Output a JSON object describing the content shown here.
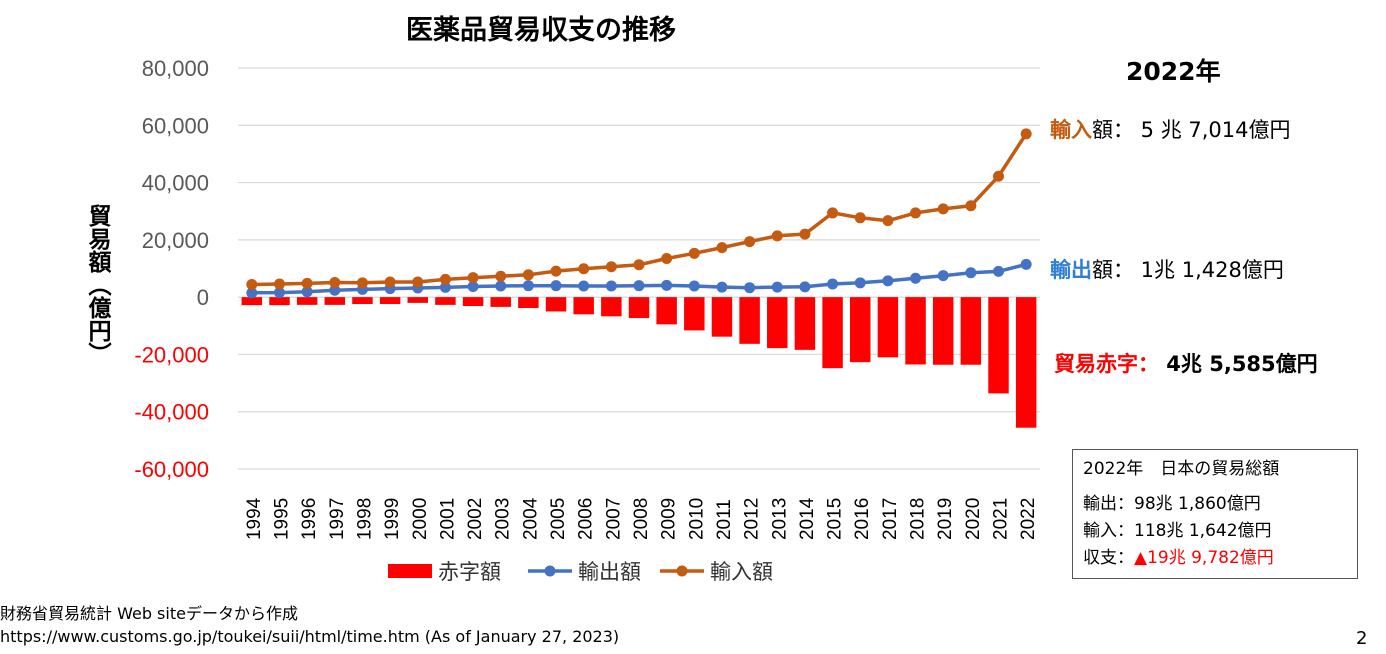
{
  "chart_data": {
    "type": "bar",
    "title": "医薬品貿易収支の推移",
    "ylabel": "貿易額（億円）",
    "ylim": [
      -60000,
      80000
    ],
    "yticks": [
      "80,000",
      "60,000",
      "40,000",
      "20,000",
      "0",
      "-20,000",
      "-40,000",
      "-60,000"
    ],
    "grid": true,
    "legend_position": "bottom",
    "categories": [
      "1994",
      "1995",
      "1996",
      "1997",
      "1998",
      "1999",
      "2000",
      "2001",
      "2002",
      "2003",
      "2004",
      "2005",
      "2006",
      "2007",
      "2008",
      "2009",
      "2010",
      "2011",
      "2012",
      "2013",
      "2014",
      "2015",
      "2016",
      "2017",
      "2018",
      "2019",
      "2020",
      "2021",
      "2022"
    ],
    "series": [
      {
        "name": "赤字額",
        "type": "bar",
        "color": "#ff0000",
        "values": [
          -2800,
          -2800,
          -2700,
          -2700,
          -2400,
          -2400,
          -2000,
          -2700,
          -3100,
          -3400,
          -3800,
          -5000,
          -6000,
          -6700,
          -7300,
          -9500,
          -11600,
          -13800,
          -16300,
          -17800,
          -18400,
          -24800,
          -22700,
          -21000,
          -23500,
          -23600,
          -23600,
          -33600,
          -45585
        ]
      },
      {
        "name": "輸出額",
        "type": "line",
        "color": "#4472c4",
        "values": [
          1500,
          1600,
          1900,
          2400,
          2700,
          3000,
          3200,
          3400,
          3700,
          3900,
          4000,
          4000,
          3900,
          3900,
          4000,
          4100,
          3900,
          3500,
          3300,
          3500,
          3600,
          4600,
          5000,
          5700,
          6600,
          7500,
          8500,
          9000,
          11428
        ]
      },
      {
        "name": "輸入額",
        "type": "line",
        "color": "#c55a11",
        "values": [
          4400,
          4600,
          4800,
          5100,
          5000,
          5300,
          5300,
          6200,
          6800,
          7300,
          7800,
          9100,
          9900,
          10600,
          11300,
          13500,
          15300,
          17300,
          19400,
          21400,
          22000,
          29400,
          27700,
          26700,
          29400,
          30800,
          31900,
          42200,
          57014
        ]
      }
    ]
  },
  "annotations": {
    "year_heading": "2022年",
    "import_key": "輸入",
    "import_rest": "額：  5 兆 7,014億円",
    "export_key": "輸出",
    "export_rest": "額：  1兆 1,428億円",
    "deficit_key": "貿易赤字：",
    "deficit_value": " 4兆 5,585億円"
  },
  "totals_box": {
    "heading": "2022年　日本の貿易総額",
    "export": "輸出：98兆 1,860億円",
    "import": "輸入：118兆 1,642億円",
    "balance_label": "収支：",
    "balance_value": "▲19兆 9,782億円"
  },
  "source": {
    "line1": "財務省貿易統計 Web siteデータから作成",
    "line2": "https://www.customs.go.jp/toukei/suii/html/time.htm (As of January 27, 2023)"
  },
  "page_number": "2",
  "colors": {
    "grid": "#d9d9d9",
    "negative_tick": "#ff0000",
    "tick": "#595959"
  }
}
